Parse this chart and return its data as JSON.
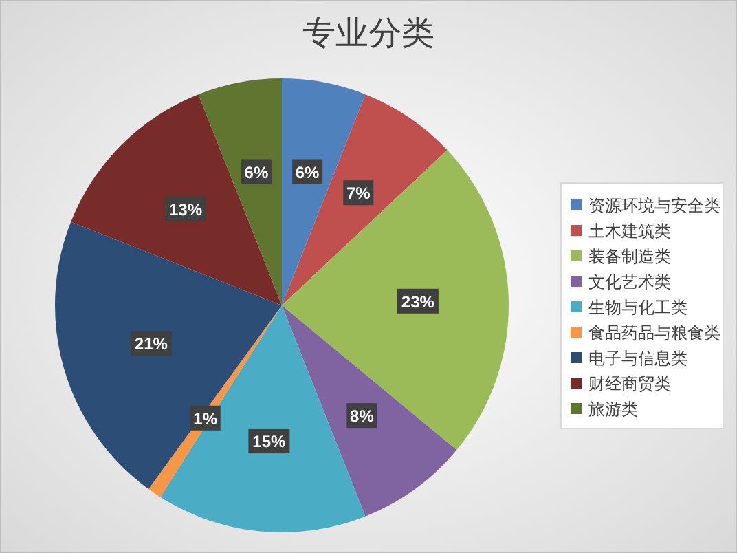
{
  "chart_data": {
    "type": "pie",
    "title": "专业分类",
    "categories": [
      "资源环境与安全类",
      "土木建筑类",
      "装备制造类",
      "文化艺术类",
      "生物与化工类",
      "食品药品与粮食类",
      "电子与信息类",
      "财经商贸类",
      "旅游类"
    ],
    "values": [
      6,
      7,
      23,
      8,
      15,
      1,
      21,
      13,
      6
    ],
    "colors": [
      "#4f81bd",
      "#c0504d",
      "#9bbb59",
      "#8064a2",
      "#4bacc6",
      "#f79646",
      "#2c4d75",
      "#772c2a",
      "#5f7530"
    ],
    "value_labels": [
      "6%",
      "7%",
      "23%",
      "8%",
      "15%",
      "1%",
      "21%",
      "13%",
      "6%"
    ],
    "legend": "right"
  }
}
